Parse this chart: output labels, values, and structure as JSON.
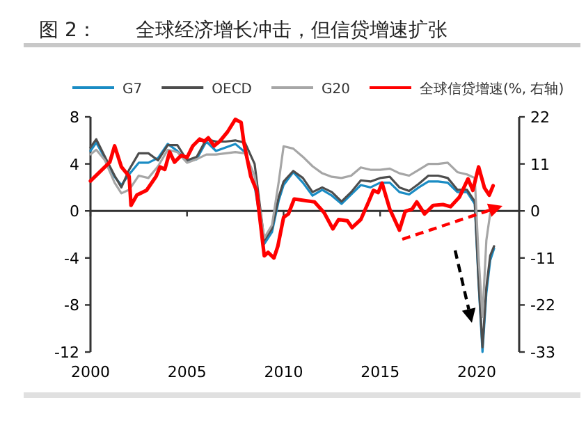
{
  "chart_data": {
    "type": "line",
    "title": "图 2：　　全球经济增长冲击，但信贷增速扩张",
    "xlim": [
      2000,
      2022.2
    ],
    "xticks": [
      2000,
      2005,
      2010,
      2015,
      2020
    ],
    "ylim": [
      -12,
      8
    ],
    "yticks": [
      -12,
      -8,
      -4,
      0,
      4,
      8
    ],
    "y2lim": [
      -33,
      22
    ],
    "y2ticks": [
      -33,
      -22,
      -11,
      0,
      11,
      22
    ],
    "legend": "top",
    "marker": "none",
    "line_style": "solid",
    "series": [
      {
        "name": "G7",
        "color": "#1a8cc4",
        "x": [
          2000,
          2000.3,
          2000.75,
          2001.25,
          2001.6,
          2002,
          2002.5,
          2003,
          2003.5,
          2004,
          2004.5,
          2005,
          2005.5,
          2006,
          2006.5,
          2007,
          2007.5,
          2008,
          2008.5,
          2009,
          2009.4,
          2009.75,
          2010,
          2010.5,
          2011,
          2011.5,
          2012,
          2012.5,
          2013,
          2013.5,
          2014,
          2014.5,
          2015,
          2015.5,
          2016,
          2016.5,
          2017,
          2017.5,
          2018,
          2018.5,
          2019,
          2019.5,
          2019.9,
          2020.1,
          2020.3,
          2020.5,
          2020.7,
          2020.9
        ],
        "values": [
          5.1,
          5.8,
          4.5,
          2.9,
          2.2,
          3.1,
          4.1,
          4.1,
          4.5,
          5.7,
          5.1,
          4.2,
          4.4,
          5.9,
          5.1,
          5.4,
          5.7,
          5.0,
          2.1,
          -2.8,
          -1.8,
          0.9,
          2.2,
          3.3,
          2.4,
          1.3,
          1.8,
          1.3,
          0.6,
          1.4,
          2.2,
          2.0,
          2.4,
          2.4,
          1.6,
          1.4,
          2.0,
          2.5,
          2.5,
          2.4,
          1.6,
          1.6,
          0.6,
          -6.2,
          -12.0,
          -7.0,
          -4.2,
          -3.2
        ]
      },
      {
        "name": "OECD",
        "color": "#4d4d4d",
        "x": [
          2000,
          2000.3,
          2000.75,
          2001.25,
          2001.6,
          2002,
          2002.5,
          2003,
          2003.5,
          2004,
          2004.5,
          2005,
          2005.5,
          2006,
          2006.5,
          2007,
          2007.5,
          2008,
          2008.5,
          2009,
          2009.4,
          2009.75,
          2010,
          2010.5,
          2011,
          2011.5,
          2012,
          2012.5,
          2013,
          2013.5,
          2014,
          2014.5,
          2015,
          2015.5,
          2016,
          2016.5,
          2017,
          2017.5,
          2018,
          2018.5,
          2019,
          2019.5,
          2019.9,
          2020.1,
          2020.3,
          2020.5,
          2020.7,
          2020.9
        ],
        "values": [
          5.4,
          6.1,
          4.6,
          3.0,
          2.0,
          3.5,
          4.9,
          4.9,
          4.3,
          5.6,
          5.6,
          4.3,
          4.6,
          6.1,
          5.9,
          5.9,
          6.0,
          5.8,
          4.0,
          -2.5,
          -1.5,
          1.2,
          2.5,
          3.4,
          2.8,
          1.6,
          2.0,
          1.6,
          0.8,
          1.6,
          2.6,
          2.5,
          2.8,
          2.9,
          2.0,
          1.7,
          2.3,
          3.0,
          3.0,
          2.8,
          1.8,
          1.8,
          0.8,
          -6.0,
          -11.6,
          -6.5,
          -3.8,
          -3.0
        ]
      },
      {
        "name": "G20",
        "color": "#a6a6a6",
        "x": [
          2000,
          2000.3,
          2000.75,
          2001.25,
          2001.6,
          2002,
          2002.5,
          2003,
          2003.5,
          2004,
          2004.5,
          2005,
          2005.5,
          2006,
          2006.5,
          2007,
          2007.5,
          2008,
          2008.5,
          2009,
          2009.4,
          2009.75,
          2010,
          2010.5,
          2011,
          2011.5,
          2012,
          2012.5,
          2013,
          2013.5,
          2014,
          2014.5,
          2015,
          2015.5,
          2016,
          2016.5,
          2017,
          2017.5,
          2018,
          2018.5,
          2019,
          2019.5,
          2019.9,
          2020.1,
          2020.3,
          2020.5,
          2020.7,
          2020.9
        ],
        "values": [
          4.8,
          5.2,
          4.3,
          2.4,
          1.5,
          1.8,
          3.0,
          2.8,
          3.8,
          5.2,
          5.0,
          4.1,
          4.4,
          4.8,
          4.8,
          4.9,
          5.0,
          4.9,
          3.0,
          -2.3,
          -1.2,
          2.5,
          5.5,
          5.3,
          4.6,
          3.8,
          3.2,
          2.9,
          2.8,
          3.0,
          3.7,
          3.5,
          3.5,
          3.6,
          3.2,
          3.0,
          3.5,
          4.0,
          4.0,
          4.1,
          3.3,
          3.1,
          2.8,
          -4.0,
          -9.0,
          -2.5,
          -0.2,
          0.3
        ]
      },
      {
        "name": "全球信贷增速(%, 右轴)",
        "color": "#ff0000",
        "axis": "y2",
        "x": [
          2000,
          2000.5,
          2001,
          2001.25,
          2001.6,
          2002,
          2002.1,
          2002.4,
          2002.9,
          2003.4,
          2003.6,
          2003.85,
          2004.1,
          2004.35,
          2004.7,
          2005,
          2005.3,
          2005.65,
          2005.9,
          2006.1,
          2006.4,
          2006.7,
          2007.1,
          2007.5,
          2007.8,
          2007.95,
          2008.3,
          2008.6,
          2009,
          2009.2,
          2009.5,
          2009.7,
          2010,
          2010.25,
          2010.55,
          2011.15,
          2011.6,
          2012.1,
          2012.55,
          2012.85,
          2013.3,
          2013.55,
          2014,
          2014.4,
          2014.65,
          2014.9,
          2015.1,
          2015.5,
          2016,
          2016.3,
          2016.65,
          2016.9,
          2017.3,
          2017.75,
          2018.25,
          2018.65,
          2019.1,
          2019.55,
          2019.8,
          2020.1,
          2020.4,
          2020.65,
          2020.85
        ],
        "values": [
          7.0,
          9.2,
          11.4,
          15.2,
          10.3,
          8.1,
          1.3,
          3.7,
          4.8,
          8.1,
          10.3,
          9.7,
          13.8,
          11.4,
          13.0,
          12.5,
          15.2,
          16.8,
          16.3,
          17.1,
          15.2,
          16.3,
          18.5,
          21.4,
          20.7,
          15.8,
          8.1,
          4.8,
          -10.5,
          -9.7,
          -11.0,
          -8.3,
          -1.5,
          -0.7,
          2.8,
          2.4,
          2.1,
          -0.4,
          -4.2,
          -2.0,
          -2.3,
          -3.9,
          -2.0,
          2.1,
          4.8,
          4.3,
          6.5,
          0.4,
          -4.5,
          -0.1,
          0.4,
          2.1,
          -0.7,
          1.3,
          1.5,
          1.0,
          3.2,
          7.5,
          4.8,
          10.3,
          5.4,
          3.7,
          5.9
        ]
      }
    ]
  }
}
